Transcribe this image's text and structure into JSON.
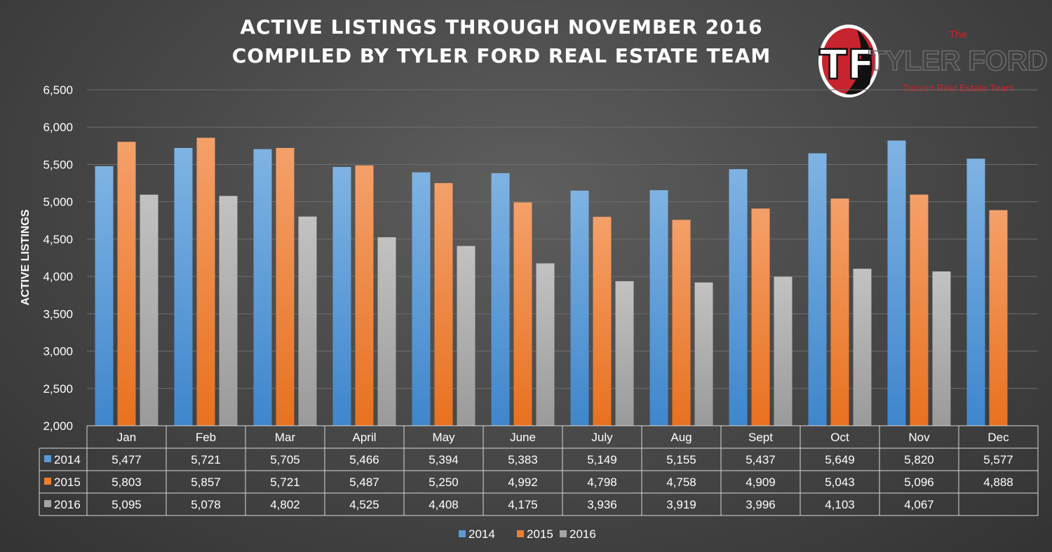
{
  "title_lines": [
    "ACTIVE LISTINGS THROUGH NOVEMBER 2016",
    "COMPILED BY TYLER FORD REAL ESTATE TEAM"
  ],
  "logo": {
    "monogram": "TF",
    "the": "The",
    "name": "TYLER FORD",
    "subtitle": "Tucson Real Estate Team",
    "colors": {
      "red": "#c7242f",
      "black": "#111111",
      "white": "#ffffff"
    }
  },
  "chart_data": {
    "type": "bar",
    "title": "ACTIVE LISTINGS THROUGH NOVEMBER 2016",
    "xlabel": "",
    "ylabel": "ACTIVE LISTINGS",
    "ylim": [
      2000,
      6500
    ],
    "yticks": [
      "2,000",
      "2,500",
      "3,000",
      "3,500",
      "4,000",
      "4,500",
      "5,000",
      "5,500",
      "6,000",
      "6,500"
    ],
    "grid": true,
    "legend_position": "bottom",
    "categories": [
      "Jan",
      "Feb",
      "Mar",
      "April",
      "May",
      "June",
      "July",
      "Aug",
      "Sept",
      "Oct",
      "Nov",
      "Dec"
    ],
    "series": [
      {
        "name": "2014",
        "color": "#5b9bd5",
        "values": [
          5477,
          5721,
          5705,
          5466,
          5394,
          5383,
          5149,
          5155,
          5437,
          5649,
          5820,
          5577
        ],
        "labels": [
          "5,477",
          "5,721",
          "5,705",
          "5,466",
          "5,394",
          "5,383",
          "5,149",
          "5,155",
          "5,437",
          "5,649",
          "5,820",
          "5,577"
        ]
      },
      {
        "name": "2015",
        "color": "#ed7d31",
        "values": [
          5803,
          5857,
          5721,
          5487,
          5250,
          4992,
          4798,
          4758,
          4909,
          5043,
          5096,
          4888
        ],
        "labels": [
          "5,803",
          "5,857",
          "5,721",
          "5,487",
          "5,250",
          "4,992",
          "4,798",
          "4,758",
          "4,909",
          "5,043",
          "5,096",
          "4,888"
        ]
      },
      {
        "name": "2016",
        "color": "#a5a5a5",
        "values": [
          5095,
          5078,
          4802,
          4525,
          4408,
          4175,
          3936,
          3919,
          3996,
          4103,
          4067,
          null
        ],
        "labels": [
          "5,095",
          "5,078",
          "4,802",
          "4,525",
          "4,408",
          "4,175",
          "3,936",
          "3,919",
          "3,996",
          "4,103",
          "4,067",
          ""
        ]
      }
    ]
  }
}
